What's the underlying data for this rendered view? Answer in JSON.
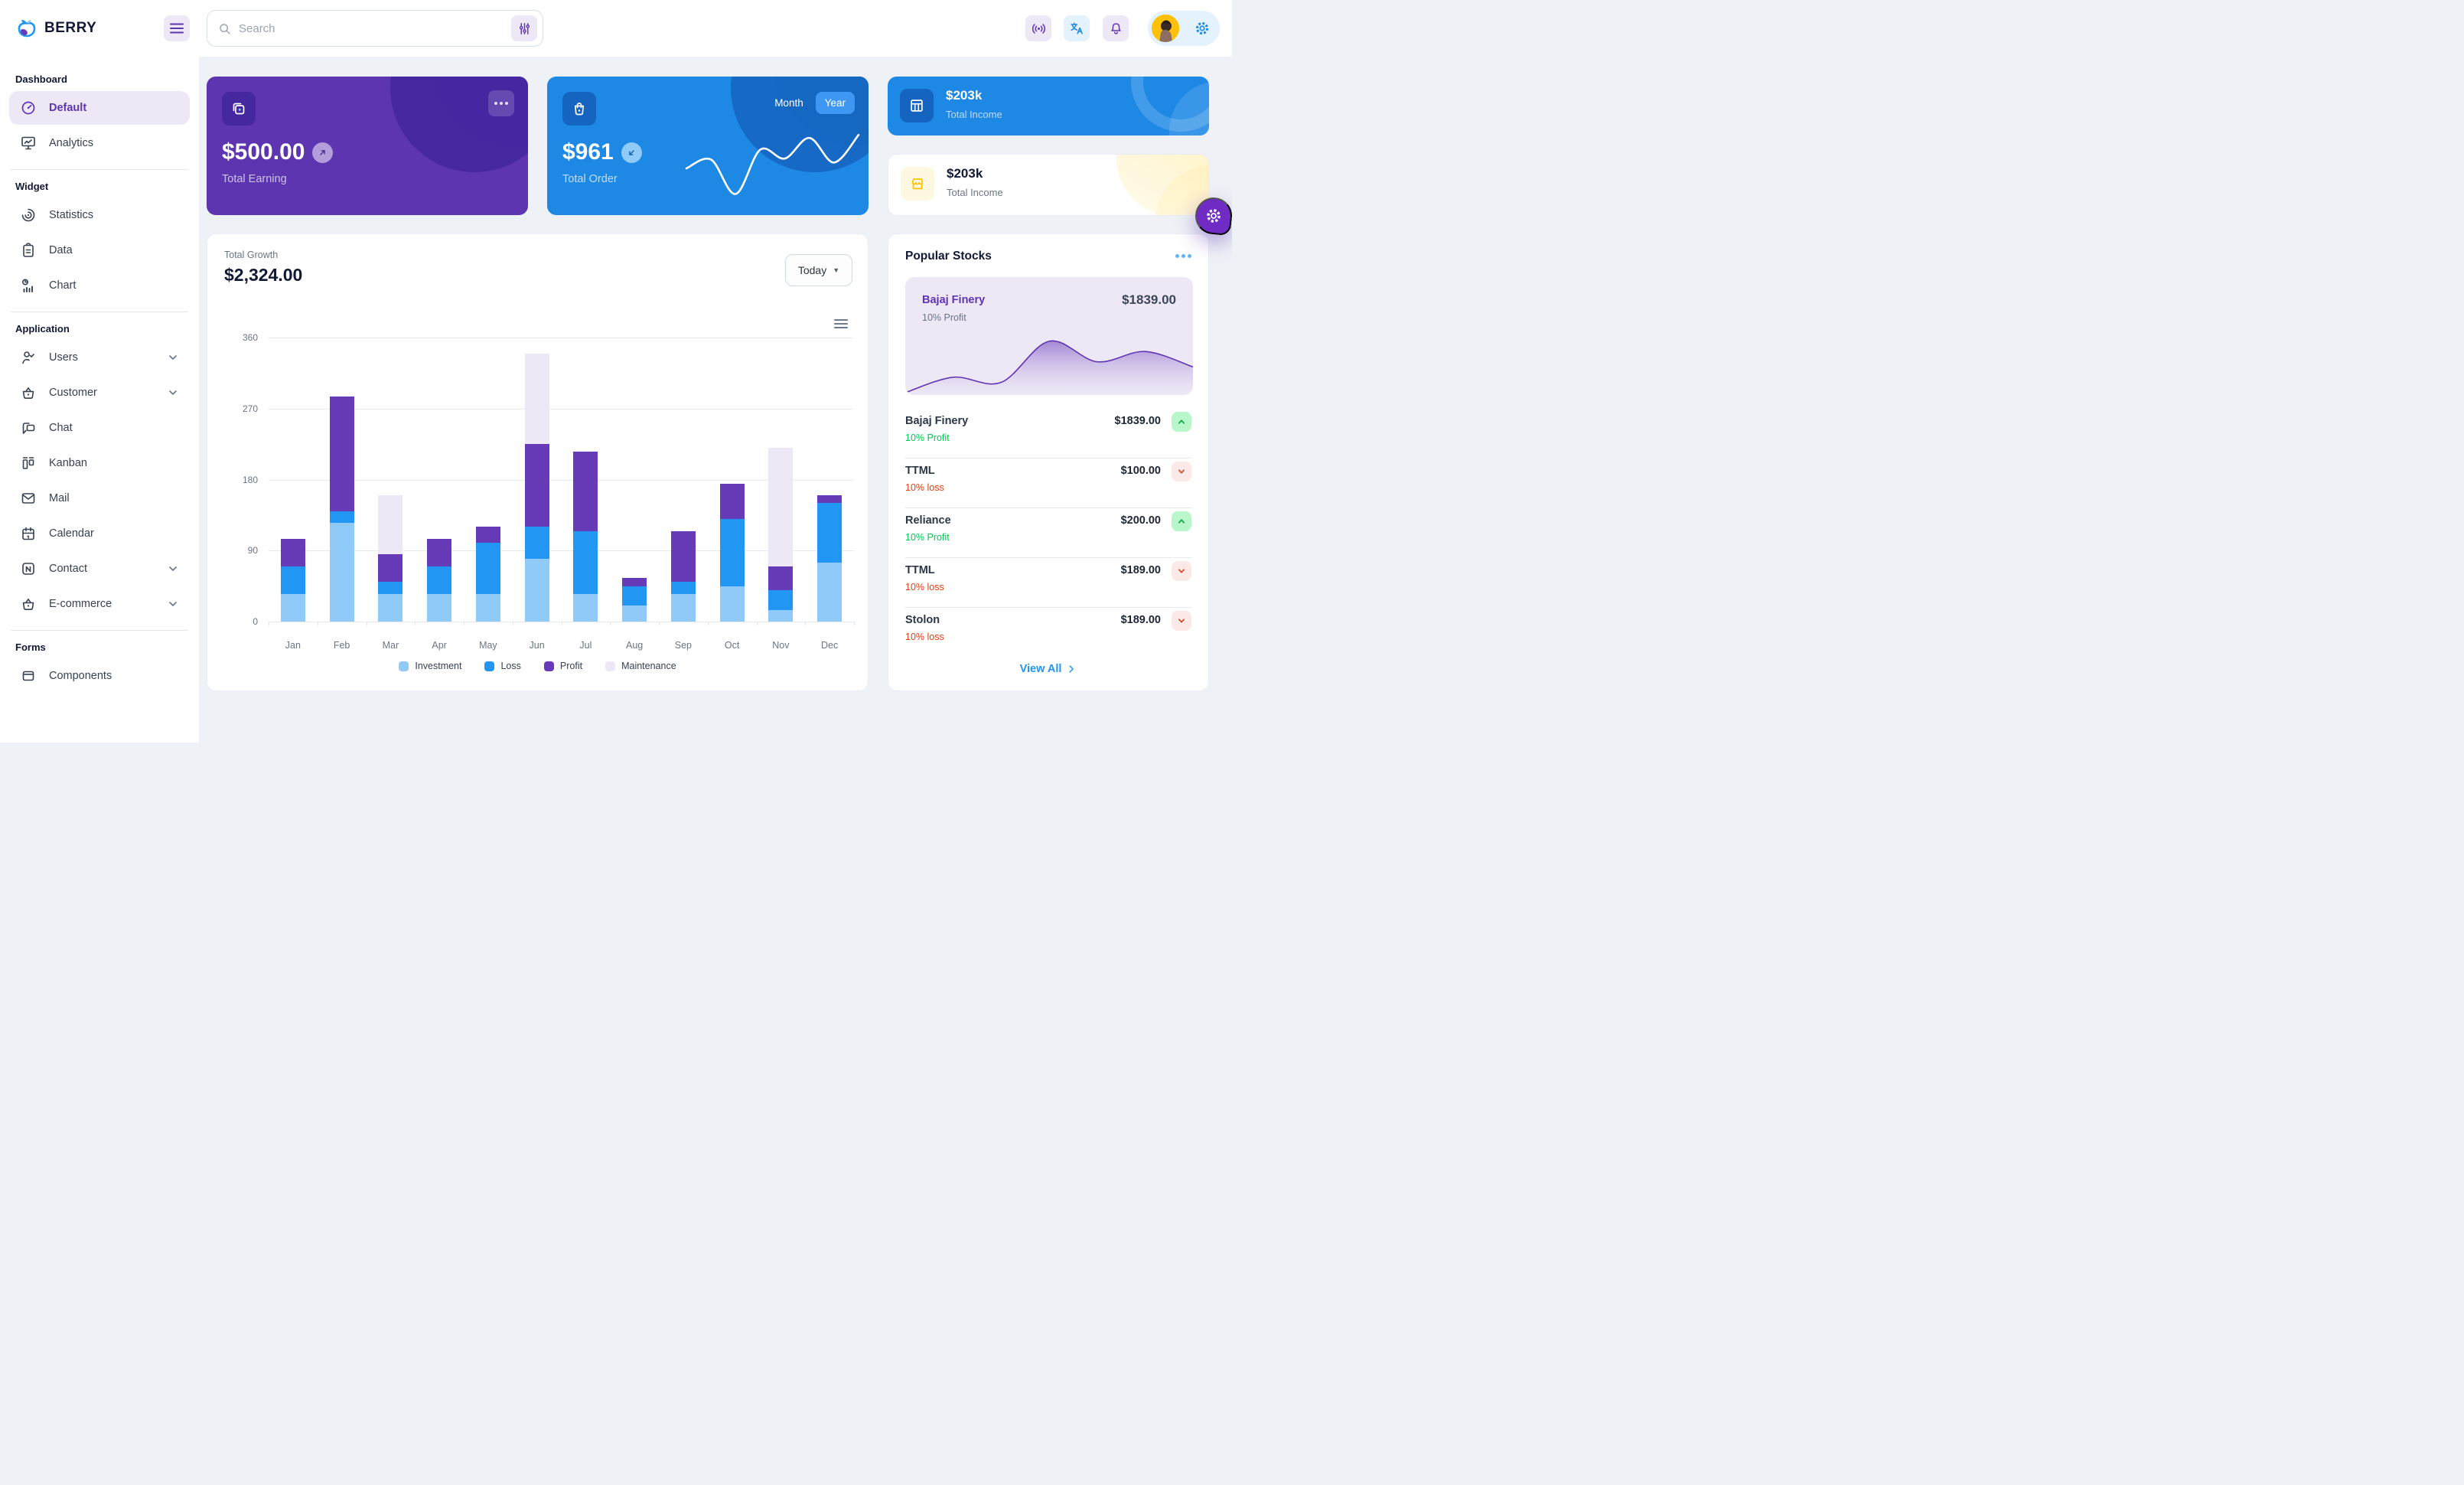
{
  "brand": {
    "name": "BERRY"
  },
  "header": {
    "search_placeholder": "Search",
    "icons": [
      "menu-icon",
      "search-icon",
      "adjustments-icon",
      "broadcast-icon",
      "translate-icon",
      "bell-icon",
      "avatar",
      "gear-icon"
    ]
  },
  "sidebar": {
    "sections": [
      {
        "title": "Dashboard",
        "items": [
          {
            "label": "Default",
            "icon": "gauge",
            "active": true
          },
          {
            "label": "Analytics",
            "icon": "analytics"
          }
        ]
      },
      {
        "title": "Widget",
        "items": [
          {
            "label": "Statistics",
            "icon": "statistics"
          },
          {
            "label": "Data",
            "icon": "data"
          },
          {
            "label": "Chart",
            "icon": "chart"
          }
        ]
      },
      {
        "title": "Application",
        "items": [
          {
            "label": "Users",
            "icon": "users",
            "chevron": true
          },
          {
            "label": "Customer",
            "icon": "basket",
            "chevron": true
          },
          {
            "label": "Chat",
            "icon": "chat"
          },
          {
            "label": "Kanban",
            "icon": "kanban"
          },
          {
            "label": "Mail",
            "icon": "mail"
          },
          {
            "label": "Calendar",
            "icon": "calendar"
          },
          {
            "label": "Contact",
            "icon": "contact",
            "chevron": true
          },
          {
            "label": "E-commerce",
            "icon": "basket",
            "chevron": true
          }
        ]
      },
      {
        "title": "Forms",
        "items": [
          {
            "label": "Components",
            "icon": "components"
          }
        ]
      }
    ]
  },
  "cards": {
    "earning": {
      "amount": "$500.00",
      "label": "Total Earning"
    },
    "order": {
      "amount": "$961",
      "label": "Total Order",
      "toggle": {
        "month": "Month",
        "year": "Year",
        "active": "Year"
      },
      "sparkline": [
        35,
        44,
        9,
        54,
        45,
        66,
        41,
        69
      ]
    },
    "income_primary": {
      "amount": "$203k",
      "label": "Total Income"
    },
    "income_warning": {
      "amount": "$203k",
      "label": "Total Income"
    }
  },
  "growth": {
    "title": "Total Growth",
    "amount": "$2,324.00",
    "period": "Today"
  },
  "chart_data": {
    "type": "bar",
    "stacked": true,
    "title": "Total Growth",
    "categories": [
      "Jan",
      "Feb",
      "Mar",
      "Apr",
      "May",
      "Jun",
      "Jul",
      "Aug",
      "Sep",
      "Oct",
      "Nov",
      "Dec"
    ],
    "series": [
      {
        "name": "Investment",
        "color": "#90caf9",
        "values": [
          35,
          125,
          35,
          35,
          35,
          80,
          35,
          20,
          35,
          45,
          15,
          75
        ]
      },
      {
        "name": "Loss",
        "color": "#2196f3",
        "values": [
          35,
          15,
          15,
          35,
          65,
          40,
          80,
          25,
          15,
          85,
          25,
          75
        ]
      },
      {
        "name": "Profit",
        "color": "#673ab7",
        "values": [
          35,
          145,
          35,
          35,
          20,
          105,
          100,
          10,
          65,
          45,
          30,
          10
        ]
      },
      {
        "name": "Maintenance",
        "color": "#ede7f6",
        "values": [
          0,
          0,
          75,
          0,
          0,
          115,
          0,
          0,
          0,
          0,
          150,
          0
        ]
      }
    ],
    "ylim": [
      0,
      360
    ],
    "yticks": [
      0,
      90,
      180,
      270,
      360
    ],
    "xlabel": "",
    "ylabel": "",
    "grid": true,
    "legend_position": "bottom"
  },
  "stocks": {
    "title": "Popular Stocks",
    "featured": {
      "name": "Bajaj Finery",
      "price": "$1839.00",
      "change": "10% Profit",
      "series": [
        0,
        15,
        10,
        50,
        30,
        40,
        25
      ]
    },
    "items": [
      {
        "name": "Bajaj Finery",
        "price": "$1839.00",
        "change": "10% Profit",
        "direction": "up"
      },
      {
        "name": "TTML",
        "price": "$100.00",
        "change": "10% loss",
        "direction": "down"
      },
      {
        "name": "Reliance",
        "price": "$200.00",
        "change": "10% Profit",
        "direction": "up"
      },
      {
        "name": "TTML",
        "price": "$189.00",
        "change": "10% loss",
        "direction": "down"
      },
      {
        "name": "Stolon",
        "price": "$189.00",
        "change": "10% loss",
        "direction": "down"
      }
    ],
    "view_all": "View All"
  },
  "colors": {
    "primary": "#2196f3",
    "primary_dark": "#1e88e5",
    "primary_light": "#90caf9",
    "secondary": "#673ab7",
    "secondary_dark": "#5e35b1",
    "secondary_light": "#ede7f6",
    "success": "#00c853",
    "error": "#d84315",
    "warning": "#ffc107",
    "background": "#eef2f6",
    "text_dark": "#111936",
    "text_muted": "#697586"
  }
}
